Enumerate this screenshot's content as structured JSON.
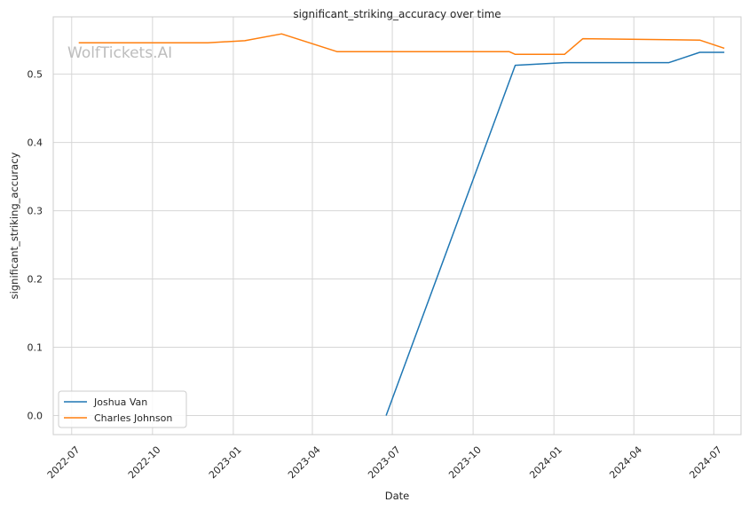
{
  "watermark": "WolfTickets.AI",
  "chart_data": {
    "type": "line",
    "title": "significant_striking_accuracy over time",
    "xlabel": "Date",
    "ylabel": "significant_striking_accuracy",
    "x_ticks": [
      "2022-07",
      "2022-10",
      "2023-01",
      "2023-04",
      "2023-07",
      "2023-10",
      "2024-01",
      "2024-04",
      "2024-07"
    ],
    "y_ticks": [
      "0.0",
      "0.1",
      "0.2",
      "0.3",
      "0.4",
      "0.5"
    ],
    "ylim": [
      -0.028,
      0.584
    ],
    "xlim": [
      "2022-06-10",
      "2024-08-01"
    ],
    "grid": true,
    "legend_position": "bottom-left",
    "series": [
      {
        "name": "Joshua Van",
        "color": "#1f77b4",
        "points": [
          [
            "2023-06-24",
            0.0
          ],
          [
            "2023-11-18",
            0.513
          ],
          [
            "2024-01-13",
            0.517
          ],
          [
            "2024-05-11",
            0.517
          ],
          [
            "2024-06-15",
            0.532
          ],
          [
            "2024-07-13",
            0.532
          ]
        ]
      },
      {
        "name": "Charles Johnson",
        "color": "#ff7f0e",
        "points": [
          [
            "2022-07-09",
            0.546
          ],
          [
            "2022-12-03",
            0.546
          ],
          [
            "2023-01-14",
            0.549
          ],
          [
            "2023-02-25",
            0.559
          ],
          [
            "2023-04-29",
            0.533
          ],
          [
            "2023-11-11",
            0.533
          ],
          [
            "2023-11-18",
            0.529
          ],
          [
            "2024-01-13",
            0.529
          ],
          [
            "2024-02-03",
            0.552
          ],
          [
            "2024-06-15",
            0.55
          ],
          [
            "2024-07-13",
            0.538
          ]
        ]
      }
    ]
  }
}
